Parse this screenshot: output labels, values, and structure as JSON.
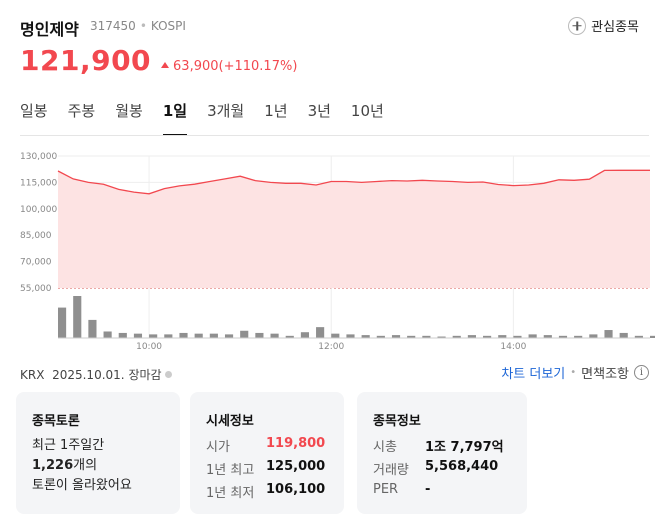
{
  "header": {
    "name": "명인제약",
    "code": "317450",
    "market": "KOSPI",
    "watch_label": "관심종목"
  },
  "price": {
    "current": "121,900",
    "change": "63,900(+110.17%)"
  },
  "tabs": [
    "일봉",
    "주봉",
    "월봉",
    "1일",
    "3개월",
    "1년",
    "3년",
    "10년"
  ],
  "active_tab": "1일",
  "colors": {
    "up": "#f2484f",
    "link": "#1e66d6",
    "area_fill": "#fde3e3",
    "volume": "#8f8f8f"
  },
  "chart_data": {
    "type": "area",
    "y_ticks": [
      "130,000",
      "115,000",
      "100,000",
      "85,000",
      "70,000",
      "55,000"
    ],
    "ylim": [
      55000,
      130000
    ],
    "x_ticks": [
      "10:00",
      "12:00",
      "14:00"
    ],
    "x": [
      "09:00",
      "09:10",
      "09:20",
      "09:30",
      "09:40",
      "09:50",
      "10:00",
      "10:10",
      "10:20",
      "10:30",
      "10:40",
      "10:50",
      "11:00",
      "11:10",
      "11:20",
      "11:30",
      "11:40",
      "11:50",
      "12:00",
      "12:10",
      "12:20",
      "12:30",
      "12:40",
      "12:50",
      "13:00",
      "13:10",
      "13:20",
      "13:30",
      "13:40",
      "13:50",
      "14:00",
      "14:10",
      "14:20",
      "14:30",
      "14:40",
      "14:50",
      "15:00",
      "15:10",
      "15:20",
      "15:30"
    ],
    "values": [
      121500,
      117000,
      115000,
      114000,
      111000,
      109500,
      108500,
      111500,
      113000,
      114000,
      115500,
      117000,
      118500,
      116000,
      115000,
      114500,
      114500,
      113500,
      115500,
      115500,
      115000,
      115500,
      116000,
      115800,
      116200,
      115800,
      115500,
      115000,
      115200,
      113800,
      113200,
      113500,
      114500,
      116500,
      116200,
      116800,
      121800,
      121900,
      121900,
      121900
    ],
    "volume": [
      42,
      58,
      25,
      9,
      7,
      6,
      5,
      5,
      7,
      6,
      6,
      5,
      10,
      7,
      6,
      3,
      8,
      15,
      6,
      5,
      4,
      3,
      4,
      3,
      3,
      2,
      3,
      4,
      3,
      4,
      3,
      5,
      4,
      3,
      3,
      5,
      11,
      7,
      3,
      3
    ]
  },
  "footer": {
    "exchange": "KRX",
    "date": "2025.10.01.",
    "status": "장마감",
    "chart_more": "차트 더보기",
    "disclaimer": "면책조항",
    "info_symbol": "i"
  },
  "cards": {
    "forum": {
      "title": "종목토론",
      "line1": "최근 1주일간",
      "count": "1,226",
      "count_suffix": "개의",
      "line3": "토론이 올라왔어요"
    },
    "quote": {
      "title": "시세정보",
      "rows": [
        {
          "label": "시가",
          "value": "119,800"
        },
        {
          "label": "1년 최고",
          "value": "125,000"
        },
        {
          "label": "1년 최저",
          "value": "106,100"
        }
      ]
    },
    "info": {
      "title": "종목정보",
      "rows": [
        {
          "label": "시총",
          "value": "1조 7,797억"
        },
        {
          "label": "거래량",
          "value": "5,568,440"
        },
        {
          "label": "PER",
          "value": "-"
        }
      ]
    }
  }
}
